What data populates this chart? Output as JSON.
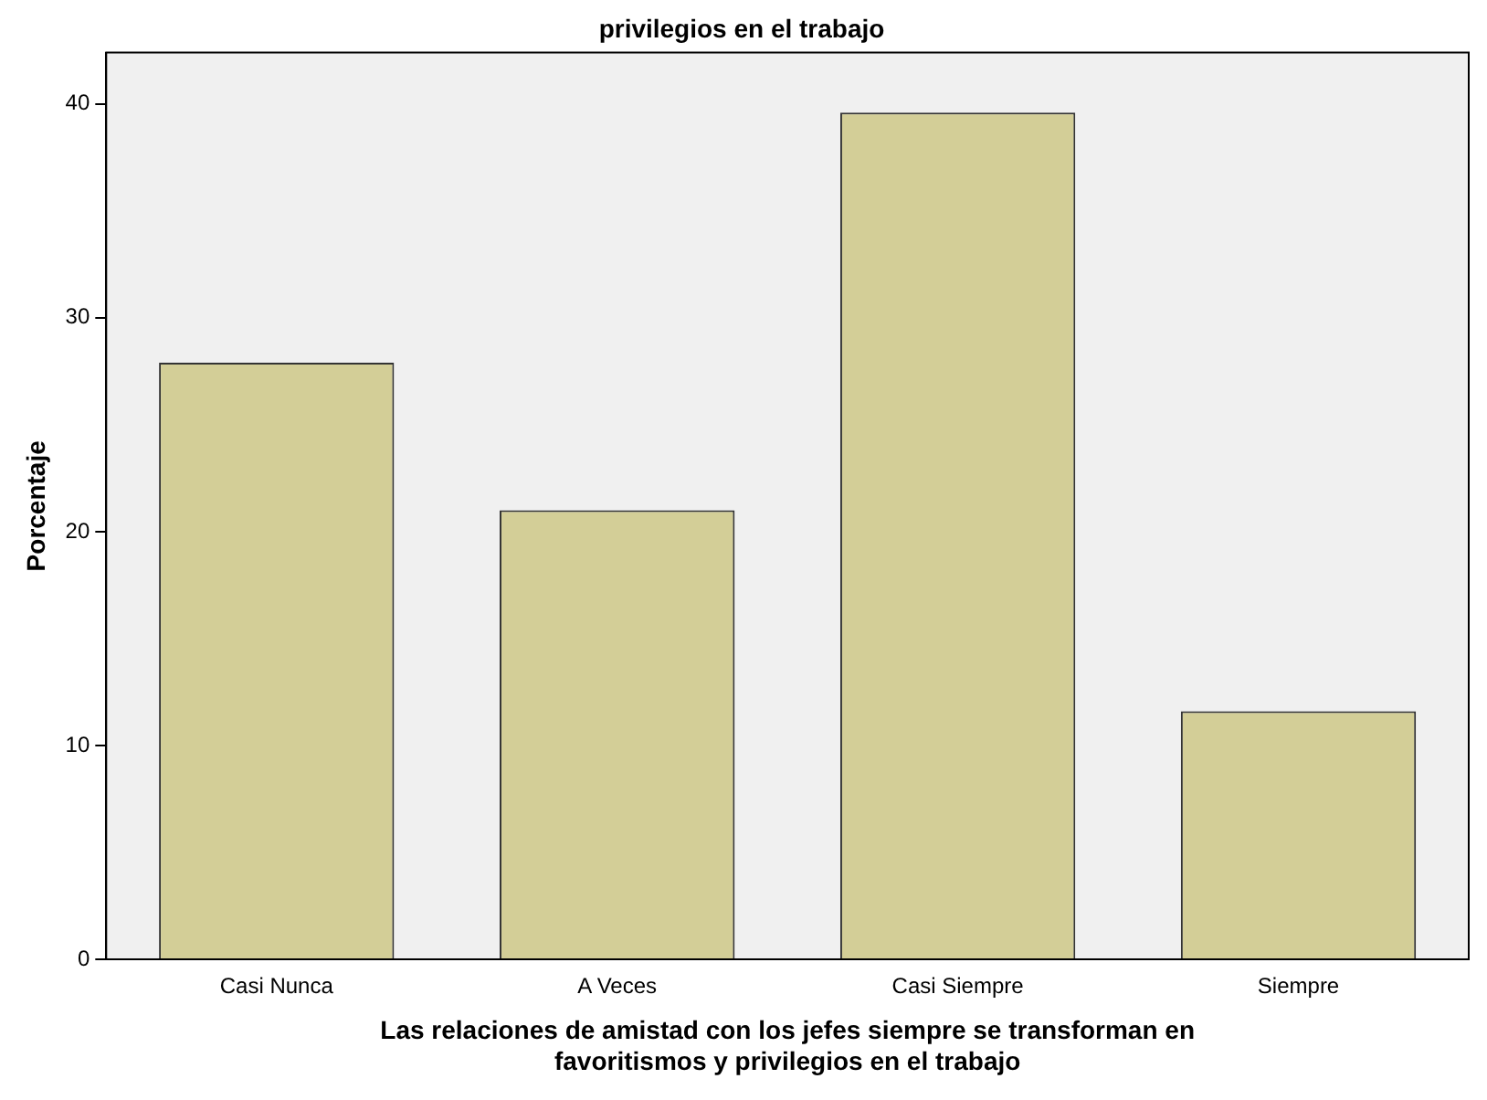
{
  "chart_data": {
    "type": "bar",
    "title": "privilegios en el trabajo",
    "xlabel": "Las relaciones de amistad con los jefes siempre se transforman en favoritismos y privilegios en el trabajo",
    "ylabel": "Porcentaje",
    "categories": [
      "Casi Nunca",
      "A Veces",
      "Casi Siempre",
      "Siempre"
    ],
    "values": [
      27.9,
      21.0,
      39.6,
      11.6
    ],
    "color": "#d3ce97",
    "ylim": [
      0,
      42.4
    ],
    "yticks": [
      0,
      10,
      20,
      30,
      40
    ],
    "grid": false,
    "legend": false
  }
}
